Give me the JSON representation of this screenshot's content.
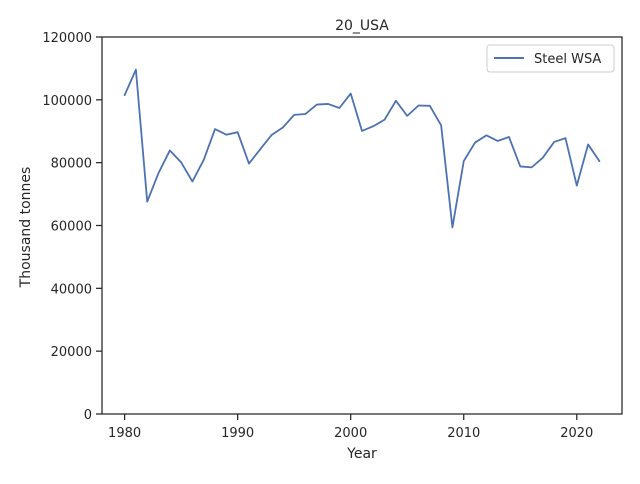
{
  "chart_data": {
    "type": "line",
    "title": "20_USA",
    "xlabel": "Year",
    "ylabel": "Thousand tonnes",
    "xlim": [
      1978,
      2024
    ],
    "ylim": [
      0,
      120000
    ],
    "xticks": [
      1980,
      1990,
      2000,
      2010,
      2020
    ],
    "yticks": [
      0,
      20000,
      40000,
      60000,
      80000,
      100000,
      120000
    ],
    "grid": false,
    "legend_position": "top-right",
    "series": [
      {
        "name": "Steel WSA",
        "color": "#4c72b0",
        "x": [
          1980,
          1981,
          1982,
          1983,
          1984,
          1985,
          1986,
          1987,
          1988,
          1989,
          1990,
          1991,
          1992,
          1993,
          1994,
          1995,
          1996,
          1997,
          1998,
          1999,
          2000,
          2001,
          2002,
          2003,
          2004,
          2005,
          2006,
          2007,
          2008,
          2009,
          2010,
          2011,
          2012,
          2013,
          2014,
          2015,
          2016,
          2017,
          2018,
          2019,
          2020,
          2021,
          2022
        ],
        "y": [
          101500,
          109600,
          67600,
          76700,
          83900,
          80100,
          74000,
          80900,
          90700,
          88900,
          89700,
          79700,
          84300,
          88800,
          91200,
          95200,
          95500,
          98500,
          98700,
          97400,
          102000,
          90100,
          91600,
          93700,
          99700,
          94900,
          98200,
          98100,
          91900,
          59400,
          80500,
          86400,
          88700,
          86900,
          88200,
          78800,
          78500,
          81600,
          86600,
          87800,
          72700,
          85800,
          80500
        ]
      }
    ]
  }
}
